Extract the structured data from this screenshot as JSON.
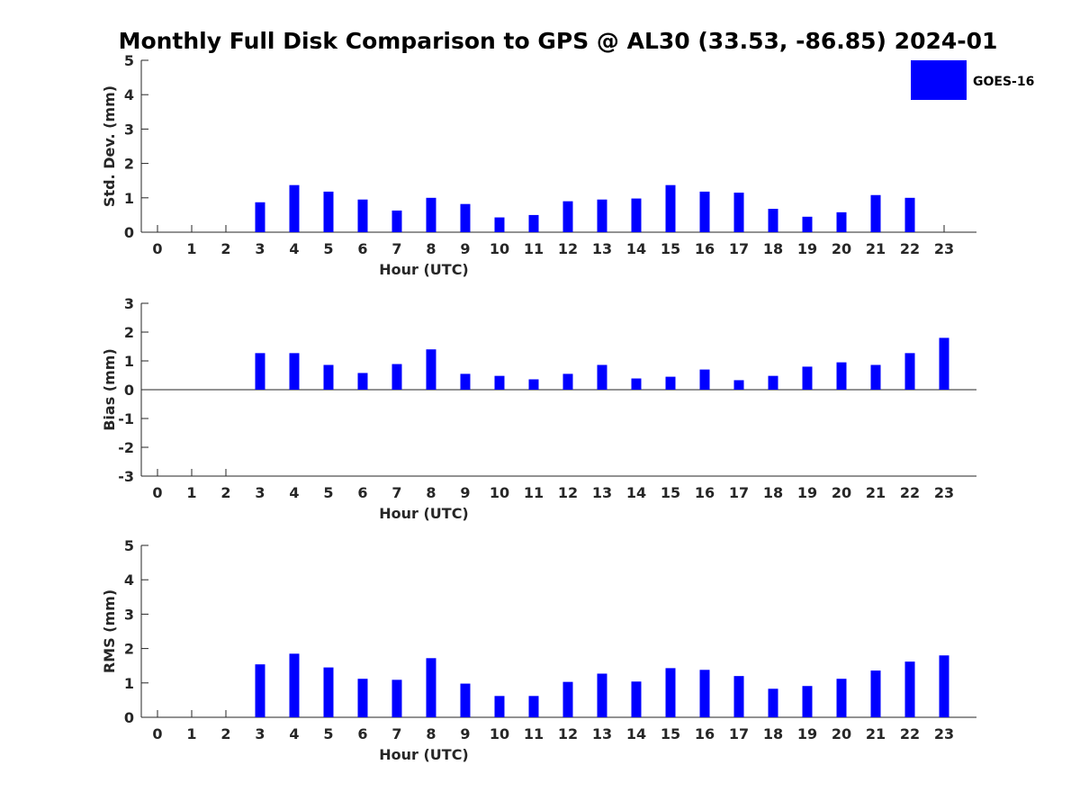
{
  "figure_title": "Monthly Full Disk Comparison to GPS @ AL30 (33.53, -86.85) 2024-01",
  "legend": {
    "label": "GOES-16",
    "color": "#0000ff",
    "placement": "top-right"
  },
  "chart_data": [
    {
      "type": "bar",
      "xlabel": "Hour (UTC)",
      "ylabel": "Std. Dev. (mm)",
      "ylim": [
        0,
        5
      ],
      "yticks": [
        0,
        1,
        2,
        3,
        4,
        5
      ],
      "categories": [
        "0",
        "1",
        "2",
        "3",
        "4",
        "5",
        "6",
        "7",
        "8",
        "9",
        "10",
        "11",
        "12",
        "13",
        "14",
        "15",
        "16",
        "17",
        "18",
        "19",
        "20",
        "21",
        "22",
        "23"
      ],
      "series": [
        {
          "name": "GOES-16",
          "color": "#0000ff",
          "values": [
            null,
            null,
            null,
            0.87,
            1.37,
            1.18,
            0.95,
            0.63,
            1.0,
            0.82,
            0.43,
            0.5,
            0.9,
            0.95,
            0.98,
            1.37,
            1.18,
            1.15,
            0.68,
            0.45,
            0.58,
            1.08,
            1.0,
            null
          ]
        }
      ]
    },
    {
      "type": "bar",
      "xlabel": "Hour (UTC)",
      "ylabel": "Bias (mm)",
      "ylim": [
        -3,
        3
      ],
      "yticks": [
        -3,
        -2,
        -1,
        0,
        1,
        2,
        3
      ],
      "categories": [
        "0",
        "1",
        "2",
        "3",
        "4",
        "5",
        "6",
        "7",
        "8",
        "9",
        "10",
        "11",
        "12",
        "13",
        "14",
        "15",
        "16",
        "17",
        "18",
        "19",
        "20",
        "21",
        "22",
        "23"
      ],
      "series": [
        {
          "name": "GOES-16",
          "color": "#0000ff",
          "values": [
            null,
            null,
            null,
            1.27,
            1.27,
            0.86,
            0.58,
            0.89,
            1.4,
            0.55,
            0.48,
            0.36,
            0.55,
            0.86,
            0.39,
            0.45,
            0.7,
            0.33,
            0.48,
            0.8,
            0.95,
            0.86,
            1.27,
            1.8
          ]
        }
      ]
    },
    {
      "type": "bar",
      "xlabel": "Hour (UTC)",
      "ylabel": "RMS (mm)",
      "ylim": [
        0,
        5
      ],
      "yticks": [
        0,
        1,
        2,
        3,
        4,
        5
      ],
      "categories": [
        "0",
        "1",
        "2",
        "3",
        "4",
        "5",
        "6",
        "7",
        "8",
        "9",
        "10",
        "11",
        "12",
        "13",
        "14",
        "15",
        "16",
        "17",
        "18",
        "19",
        "20",
        "21",
        "22",
        "23"
      ],
      "series": [
        {
          "name": "GOES-16",
          "color": "#0000ff",
          "values": [
            null,
            null,
            null,
            1.54,
            1.85,
            1.45,
            1.12,
            1.09,
            1.72,
            0.98,
            0.62,
            0.62,
            1.03,
            1.27,
            1.04,
            1.43,
            1.38,
            1.2,
            0.83,
            0.91,
            1.12,
            1.36,
            1.62,
            1.8
          ]
        }
      ]
    }
  ]
}
